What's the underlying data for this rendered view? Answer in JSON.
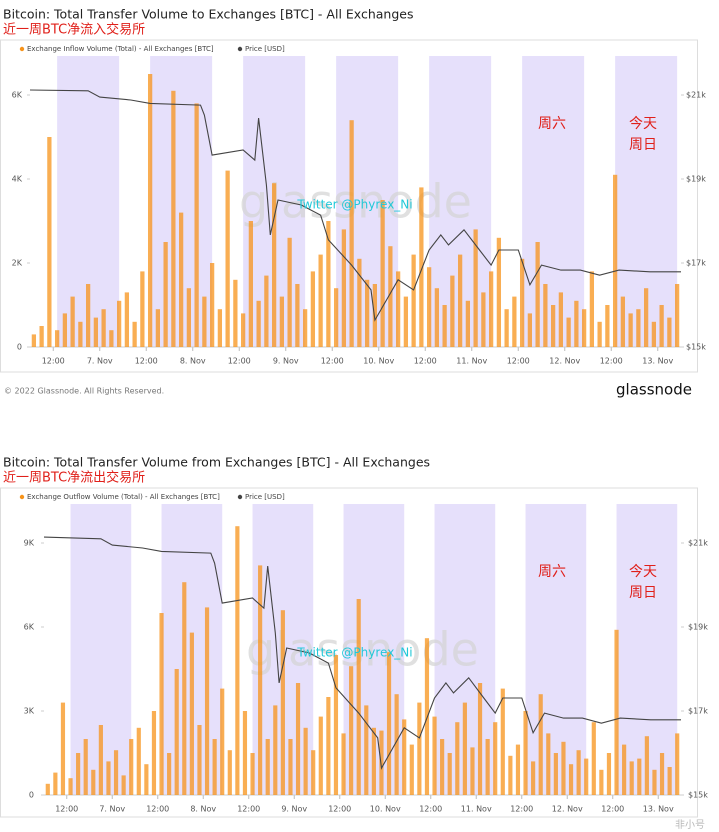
{
  "chart_data": [
    {
      "type": "bar",
      "title": "Bitcoin: Total Transfer Volume to Exchanges [BTC] - All Exchanges",
      "subtitle": "近一周BTC净流入交易所",
      "xlim": [
        0,
        168
      ],
      "xticks": [
        {
          "value": 6,
          "label": "12:00"
        },
        {
          "value": 18,
          "label": "7. Nov"
        },
        {
          "value": 30,
          "label": "12:00"
        },
        {
          "value": 42,
          "label": "8. Nov"
        },
        {
          "value": 54,
          "label": "12:00"
        },
        {
          "value": 66,
          "label": "9. Nov"
        },
        {
          "value": 78,
          "label": "12:00"
        },
        {
          "value": 90,
          "label": "10. Nov"
        },
        {
          "value": 102,
          "label": "12:00"
        },
        {
          "value": 114,
          "label": "11. Nov"
        },
        {
          "value": 126,
          "label": "12:00"
        },
        {
          "value": 138,
          "label": "12. Nov"
        },
        {
          "value": 150,
          "label": "12:00"
        },
        {
          "value": 162,
          "label": "13. Nov"
        }
      ],
      "ylim": [
        0,
        7000
      ],
      "yticks": [
        0,
        {
          "value": 2000,
          "label": "2K"
        },
        {
          "value": 4000,
          "label": "4K"
        },
        {
          "value": 6000,
          "label": "6K"
        }
      ],
      "y2lim": [
        15000,
        22000
      ],
      "y2ticks": [
        {
          "value": 15000,
          "label": "$15k"
        },
        {
          "value": 17000,
          "label": "$17k"
        },
        {
          "value": 19000,
          "label": "$19k"
        },
        {
          "value": 21000,
          "label": "$21k"
        }
      ],
      "bands": [
        [
          7,
          23
        ],
        [
          31,
          47
        ],
        [
          55,
          71
        ],
        [
          79,
          95
        ],
        [
          103,
          119
        ],
        [
          127,
          143
        ],
        [
          151,
          167
        ]
      ],
      "annotations": [
        "周六",
        "今天",
        "周日"
      ],
      "credit": "Twitter @Phyrex_Ni",
      "watermark": "glassnode",
      "series": [
        {
          "name": "Exchange Inflow Volume (Total) - All Exchanges [BTC]",
          "color": "#f7931a",
          "x": [
            1,
            3,
            5,
            7,
            9,
            11,
            13,
            15,
            17,
            19,
            21,
            23,
            25,
            27,
            29,
            31,
            33,
            35,
            37,
            39,
            41,
            43,
            45,
            47,
            49,
            51,
            53,
            55,
            57,
            59,
            61,
            63,
            65,
            67,
            69,
            71,
            73,
            75,
            77,
            79,
            81,
            83,
            85,
            87,
            89,
            91,
            93,
            95,
            97,
            99,
            101,
            103,
            105,
            107,
            109,
            111,
            113,
            115,
            117,
            119,
            121,
            123,
            125,
            127,
            129,
            131,
            133,
            135,
            137,
            139,
            141,
            143,
            145,
            147,
            149,
            151,
            153,
            155,
            157,
            159,
            161,
            163,
            165,
            167
          ],
          "values": [
            300,
            500,
            5000,
            400,
            800,
            1200,
            600,
            1500,
            700,
            900,
            400,
            1100,
            1300,
            600,
            1800,
            6500,
            900,
            2500,
            6100,
            3200,
            1400,
            5800,
            1200,
            2000,
            900,
            4200,
            1600,
            800,
            3000,
            1100,
            1700,
            3900,
            1200,
            2600,
            1500,
            900,
            1800,
            2200,
            3000,
            1400,
            2800,
            5400,
            2100,
            1600,
            1500,
            3500,
            2400,
            1800,
            1200,
            2200,
            3800,
            1900,
            1400,
            1000,
            1700,
            2200,
            1100,
            2800,
            1300,
            1800,
            2600,
            900,
            1200,
            2100,
            800,
            2500,
            1500,
            1000,
            1300,
            700,
            1100,
            900,
            1800,
            600,
            1000,
            4100,
            1200,
            800,
            900,
            1400,
            600,
            1000,
            700,
            1500
          ]
        },
        {
          "name": "Price [USD]",
          "color": "#444444",
          "axis": "y2",
          "x": [
            0,
            15,
            18,
            26,
            31,
            44,
            45,
            47,
            55,
            58,
            59,
            61,
            62,
            64,
            70,
            75,
            77,
            83,
            88,
            89,
            92,
            95,
            99,
            103,
            106,
            108,
            112,
            116,
            119,
            121,
            126,
            129,
            132,
            137,
            142,
            147,
            152,
            160,
            168
          ],
          "values": [
            21120,
            21100,
            20950,
            20880,
            20800,
            20760,
            20520,
            19570,
            19690,
            19450,
            20450,
            18860,
            17670,
            18500,
            18380,
            18140,
            17550,
            16950,
            16360,
            15640,
            16120,
            16600,
            16360,
            17310,
            17670,
            17430,
            17790,
            17310,
            16950,
            17310,
            17310,
            16480,
            16950,
            16830,
            16830,
            16710,
            16830,
            16790,
            16790
          ]
        }
      ]
    },
    {
      "type": "bar",
      "title": "Bitcoin: Total Transfer Volume from Exchanges [BTC] - All Exchanges",
      "subtitle": "近一周BTC净流出交易所",
      "xlim": [
        0,
        168
      ],
      "xticks": [
        {
          "value": 6,
          "label": "12:00"
        },
        {
          "value": 18,
          "label": "7. Nov"
        },
        {
          "value": 30,
          "label": "12:00"
        },
        {
          "value": 42,
          "label": "8. Nov"
        },
        {
          "value": 54,
          "label": "12:00"
        },
        {
          "value": 66,
          "label": "9. Nov"
        },
        {
          "value": 78,
          "label": "12:00"
        },
        {
          "value": 90,
          "label": "10. Nov"
        },
        {
          "value": 102,
          "label": "12:00"
        },
        {
          "value": 114,
          "label": "11. Nov"
        },
        {
          "value": 126,
          "label": "12:00"
        },
        {
          "value": 138,
          "label": "12. Nov"
        },
        {
          "value": 150,
          "label": "12:00"
        },
        {
          "value": 162,
          "label": "13. Nov"
        }
      ],
      "ylim": [
        0,
        10500
      ],
      "yticks": [
        0,
        {
          "value": 3000,
          "label": "3K"
        },
        {
          "value": 6000,
          "label": "6K"
        },
        {
          "value": 9000,
          "label": "9K"
        }
      ],
      "y2lim": [
        15000,
        22000
      ],
      "y2ticks": [
        {
          "value": 15000,
          "label": "$15k"
        },
        {
          "value": 17000,
          "label": "$17k"
        },
        {
          "value": 19000,
          "label": "$19k"
        },
        {
          "value": 21000,
          "label": "$21k"
        }
      ],
      "bands": [
        [
          7,
          23
        ],
        [
          31,
          47
        ],
        [
          55,
          71
        ],
        [
          79,
          95
        ],
        [
          103,
          119
        ],
        [
          127,
          143
        ],
        [
          151,
          167
        ]
      ],
      "annotations": [
        "周六",
        "今天",
        "周日"
      ],
      "credit": "Twitter @Phyrex_Ni",
      "watermark": "glassnode",
      "series": [
        {
          "name": "Exchange Outflow Volume (Total) - All Exchanges [BTC]",
          "color": "#f7931a",
          "x": [
            1,
            3,
            5,
            7,
            9,
            11,
            13,
            15,
            17,
            19,
            21,
            23,
            25,
            27,
            29,
            31,
            33,
            35,
            37,
            39,
            41,
            43,
            45,
            47,
            49,
            51,
            53,
            55,
            57,
            59,
            61,
            63,
            65,
            67,
            69,
            71,
            73,
            75,
            77,
            79,
            81,
            83,
            85,
            87,
            89,
            91,
            93,
            95,
            97,
            99,
            101,
            103,
            105,
            107,
            109,
            111,
            113,
            115,
            117,
            119,
            121,
            123,
            125,
            127,
            129,
            131,
            133,
            135,
            137,
            139,
            141,
            143,
            145,
            147,
            149,
            151,
            153,
            155,
            157,
            159,
            161,
            163,
            165,
            167
          ],
          "values": [
            400,
            800,
            3300,
            600,
            1500,
            2000,
            900,
            2500,
            1200,
            1600,
            700,
            2000,
            2400,
            1100,
            3000,
            6500,
            1500,
            4500,
            7600,
            5800,
            2500,
            6700,
            2000,
            3800,
            1600,
            9600,
            3000,
            1500,
            8200,
            2000,
            3200,
            6600,
            2000,
            4000,
            2400,
            1600,
            2800,
            3500,
            5000,
            2200,
            4600,
            7000,
            3200,
            2400,
            2300,
            5100,
            3600,
            2700,
            1800,
            3300,
            5600,
            2800,
            2000,
            1500,
            2600,
            3300,
            1700,
            4000,
            2000,
            2600,
            3800,
            1400,
            1800,
            3000,
            1200,
            3600,
            2200,
            1500,
            1900,
            1100,
            1600,
            1300,
            2600,
            900,
            1500,
            5900,
            1800,
            1200,
            1300,
            2100,
            900,
            1500,
            1000,
            2200
          ]
        },
        {
          "name": "Price [USD]",
          "color": "#444444",
          "axis": "y2",
          "x": [
            0,
            15,
            18,
            26,
            31,
            44,
            45,
            47,
            55,
            58,
            59,
            61,
            62,
            64,
            70,
            75,
            77,
            83,
            88,
            89,
            92,
            95,
            99,
            103,
            106,
            108,
            112,
            116,
            119,
            121,
            126,
            129,
            132,
            137,
            142,
            147,
            152,
            160,
            168
          ],
          "values": [
            21140,
            21100,
            20950,
            20880,
            20800,
            20760,
            20520,
            19570,
            19690,
            19450,
            20450,
            18860,
            17670,
            18500,
            18380,
            18140,
            17550,
            16950,
            16360,
            15640,
            16120,
            16600,
            16360,
            17310,
            17670,
            17430,
            17790,
            17310,
            16950,
            17310,
            17310,
            16480,
            16950,
            16830,
            16830,
            16710,
            16830,
            16790,
            16790
          ]
        }
      ]
    }
  ],
  "footer": {
    "copyright": "© 2022 Glassnode. All Rights Reserved.",
    "logo": "glassnode",
    "corner_mark": "非小号"
  }
}
